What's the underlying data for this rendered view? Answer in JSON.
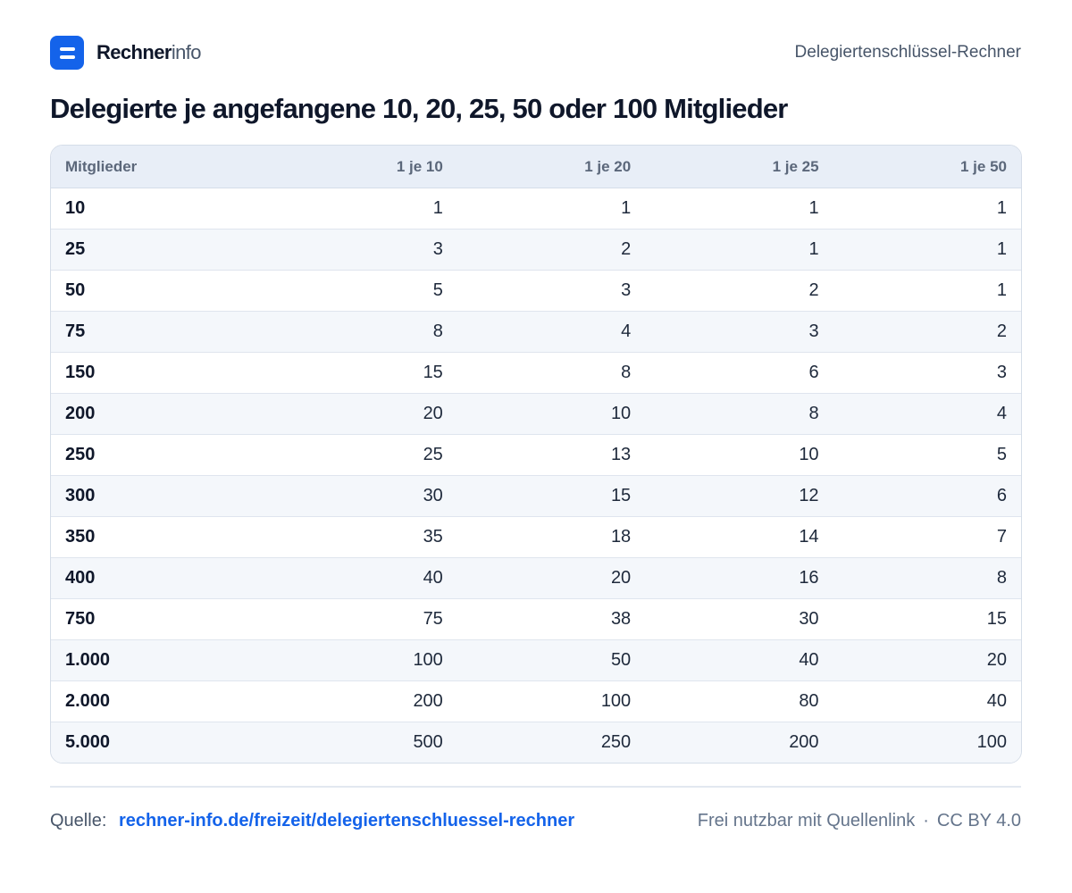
{
  "header": {
    "brand_bold": "Rechner",
    "brand_light": "info",
    "page_name": "Delegiertenschlüssel-Rechner"
  },
  "title": "Delegierte je angefangene 10, 20, 25, 50 oder 100 Mitglieder",
  "table": {
    "columns": [
      "Mitglieder",
      "1 je 10",
      "1 je 20",
      "1 je 25",
      "1 je 50"
    ],
    "rows": [
      [
        "10",
        "1",
        "1",
        "1",
        "1"
      ],
      [
        "25",
        "3",
        "2",
        "1",
        "1"
      ],
      [
        "50",
        "5",
        "3",
        "2",
        "1"
      ],
      [
        "75",
        "8",
        "4",
        "3",
        "2"
      ],
      [
        "150",
        "15",
        "8",
        "6",
        "3"
      ],
      [
        "200",
        "20",
        "10",
        "8",
        "4"
      ],
      [
        "250",
        "25",
        "13",
        "10",
        "5"
      ],
      [
        "300",
        "30",
        "15",
        "12",
        "6"
      ],
      [
        "350",
        "35",
        "18",
        "14",
        "7"
      ],
      [
        "400",
        "40",
        "20",
        "16",
        "8"
      ],
      [
        "750",
        "75",
        "38",
        "30",
        "15"
      ],
      [
        "1.000",
        "100",
        "50",
        "40",
        "20"
      ],
      [
        "2.000",
        "200",
        "100",
        "80",
        "40"
      ],
      [
        "5.000",
        "500",
        "250",
        "200",
        "100"
      ]
    ]
  },
  "footer": {
    "source_label": "Quelle:",
    "source_link": "rechner-info.de/freizeit/delegiertenschluessel-rechner",
    "license_text": "Frei nutzbar mit Quellenlink",
    "separator": "·",
    "license": "CC BY 4.0"
  },
  "colors": {
    "accent": "#1463ea",
    "header_bg": "#e8eef7",
    "stripe_bg": "#f4f7fb"
  },
  "icons": {
    "logo": "menu-lines-icon"
  }
}
